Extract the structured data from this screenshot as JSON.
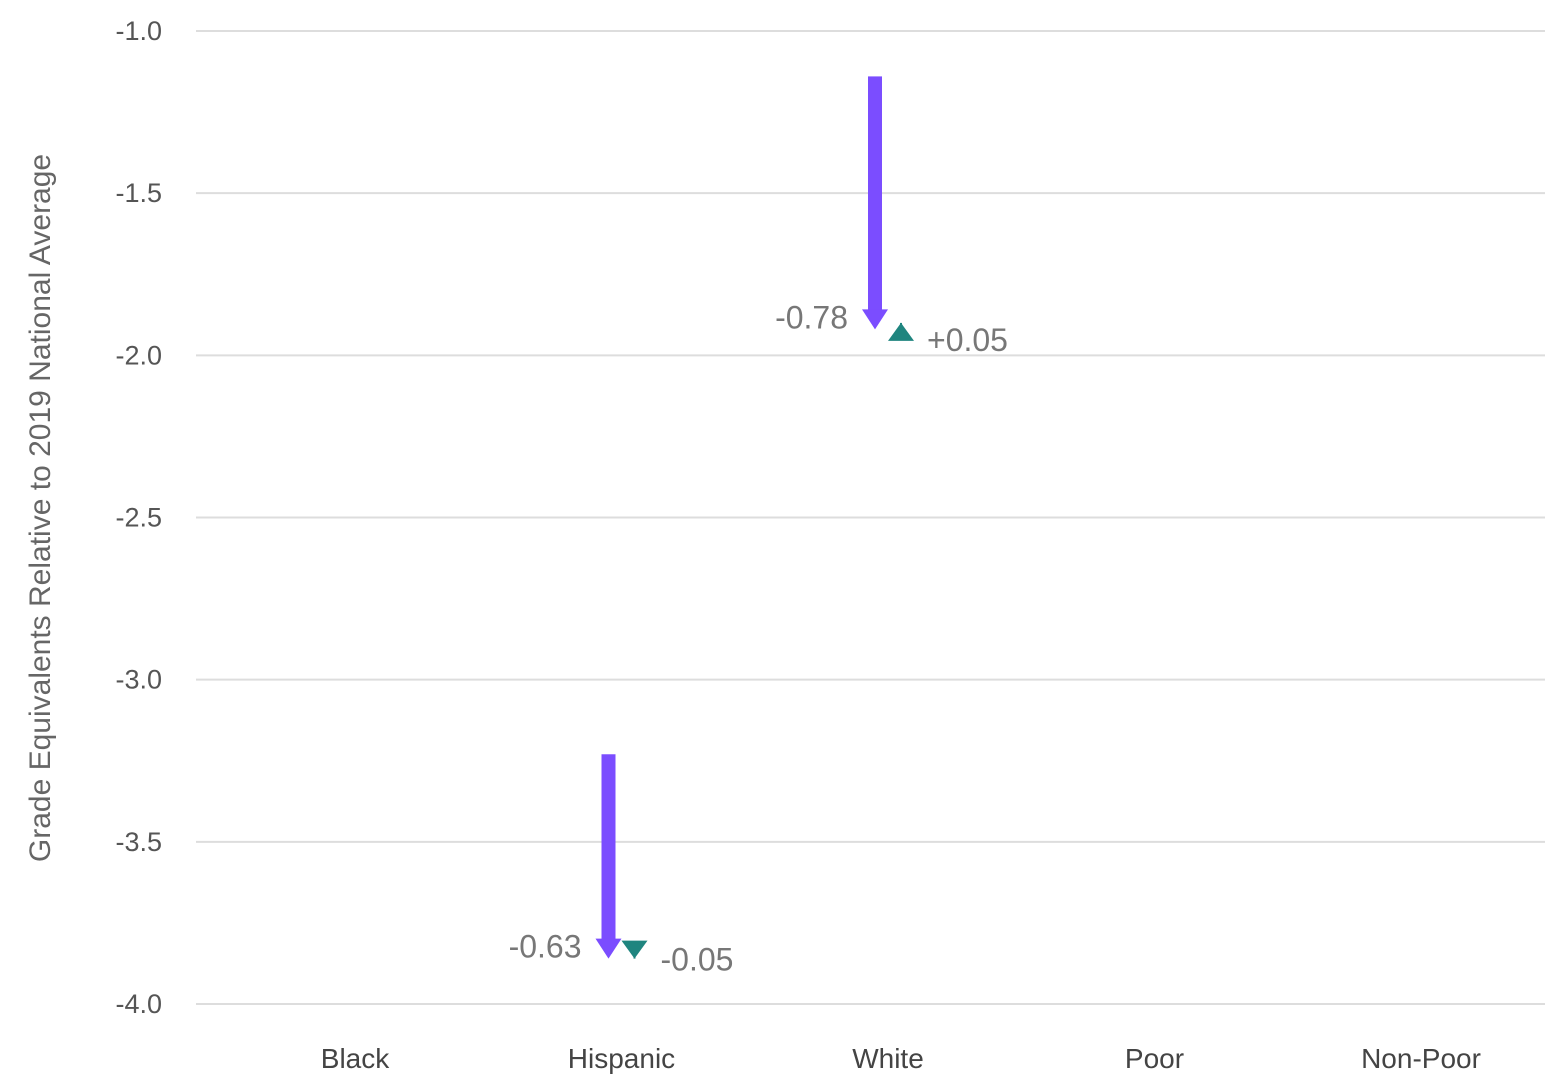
{
  "chart_data": {
    "type": "arrow",
    "ylabel": "Grade Equivalents Relative to 2019 National Average",
    "ylim": [
      -4.0,
      -1.0
    ],
    "yticks": [
      -1.0,
      -1.5,
      -2.0,
      -2.5,
      -3.0,
      -3.5,
      -4.0
    ],
    "ytick_labels": [
      "-1.0",
      "-1.5",
      "-2.0",
      "-2.5",
      "-3.0",
      "-3.5",
      "-4.0"
    ],
    "grid": true,
    "categories": [
      "Black",
      "Hispanic",
      "White",
      "Poor",
      "Non-Poor"
    ],
    "series": [
      {
        "color": "#7B4DFF",
        "marker": "arrow",
        "points": [
          {
            "category": "Hispanic",
            "start": -3.23,
            "end": -3.86,
            "label": "-0.63"
          },
          {
            "category": "White",
            "start": -1.14,
            "end": -1.92,
            "label": "-0.78"
          }
        ]
      },
      {
        "color": "#1F857F",
        "marker": "triangle",
        "points": [
          {
            "category": "Hispanic",
            "start": -3.81,
            "end": -3.86,
            "label": "-0.05"
          },
          {
            "category": "White",
            "start": -1.95,
            "end": -1.9,
            "label": "+0.05"
          }
        ]
      }
    ]
  }
}
